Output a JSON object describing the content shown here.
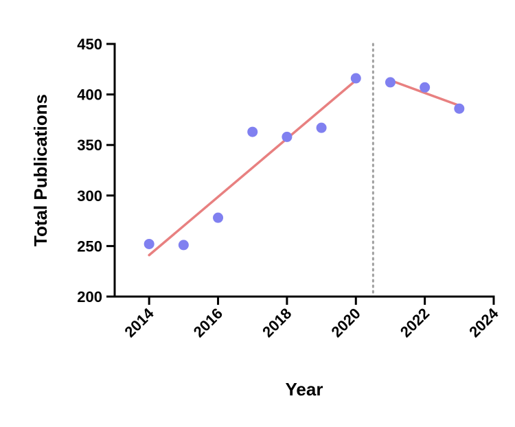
{
  "chart_data": {
    "type": "scatter",
    "title": "",
    "xlabel": "Year",
    "ylabel": "Total Publications",
    "xlim": [
      2013,
      2024
    ],
    "ylim": [
      200,
      450
    ],
    "x_ticks": [
      "2014",
      "2016",
      "2018",
      "2020",
      "2022",
      "2024"
    ],
    "y_ticks": [
      "200",
      "250",
      "300",
      "350",
      "400",
      "450"
    ],
    "grid": false,
    "series": [
      {
        "x": [
          2014,
          2015,
          2016,
          2017,
          2018,
          2019,
          2020,
          2021,
          2022,
          2023
        ],
        "y": [
          252,
          251,
          278,
          363,
          358,
          367,
          416,
          412,
          407,
          386
        ]
      }
    ],
    "trend_lines": [
      {
        "x": [
          2014,
          2020
        ],
        "y": [
          241,
          414
        ]
      },
      {
        "x": [
          2021,
          2023
        ],
        "y": [
          414,
          389
        ]
      }
    ],
    "divider_x": 2020.5,
    "colors": {
      "points": "#8080f0",
      "trend": "#e88080",
      "divider": "#a0a0a0",
      "axis": "#000000"
    }
  }
}
